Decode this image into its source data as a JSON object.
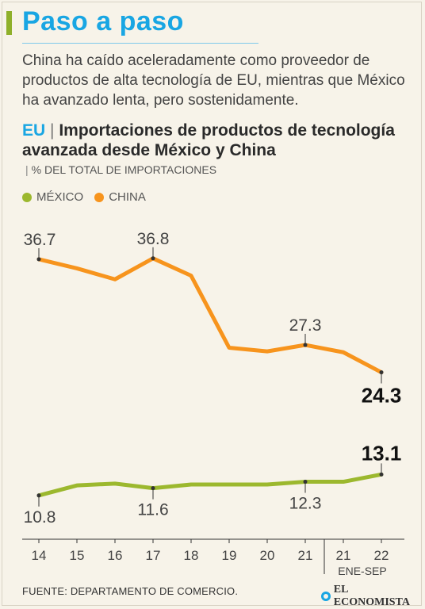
{
  "header": {
    "title": "Paso a paso",
    "subtitle": "China ha caído aceleradamente como proveedor de productos de alta tecnología de EU, mientras que México ha avanzado lenta, pero sostenidamente."
  },
  "colors": {
    "accent_green": "#8fb02a",
    "title_blue": "#19a6e3",
    "china": "#f7941d",
    "mexico": "#9cb82e"
  },
  "chart_data": {
    "type": "line",
    "title_prefix": "EU",
    "title": "Importaciones de productos de tecnología avanzada desde México y China",
    "ylabel": "% DEL TOTAL DE IMPORTACIONES",
    "xlabel": "",
    "categories": [
      "14",
      "15",
      "16",
      "17",
      "18",
      "19",
      "20",
      "21",
      "21",
      "22"
    ],
    "period_label": "ENE-SEP",
    "grid": false,
    "legend_position": "top-left",
    "ylim": [
      8,
      40
    ],
    "series": [
      {
        "name": "MÉXICO",
        "color": "#9cb82e",
        "values": [
          10.8,
          11.9,
          12.1,
          11.6,
          12.0,
          12.0,
          12.0,
          12.3,
          12.3,
          13.1
        ],
        "labels": [
          {
            "index": 0,
            "text": "10.8",
            "position": "below"
          },
          {
            "index": 3,
            "text": "11.6",
            "position": "below"
          },
          {
            "index": 7,
            "text": "12.3",
            "position": "below"
          },
          {
            "index": 9,
            "text": "13.1",
            "position": "above",
            "bold": true
          }
        ]
      },
      {
        "name": "CHINA",
        "color": "#f7941d",
        "values": [
          36.7,
          35.7,
          34.5,
          36.8,
          34.9,
          27.0,
          26.6,
          27.3,
          26.5,
          24.3
        ],
        "labels": [
          {
            "index": 0,
            "text": "36.7",
            "position": "above"
          },
          {
            "index": 3,
            "text": "36.8",
            "position": "above"
          },
          {
            "index": 7,
            "text": "27.3",
            "position": "above"
          },
          {
            "index": 9,
            "text": "24.3",
            "position": "below",
            "bold": true
          }
        ]
      }
    ]
  },
  "footer": {
    "source": "FUENTE: DEPARTAMENTO DE COMERCIO.",
    "logo_text": "EL ECONOMISTA"
  }
}
